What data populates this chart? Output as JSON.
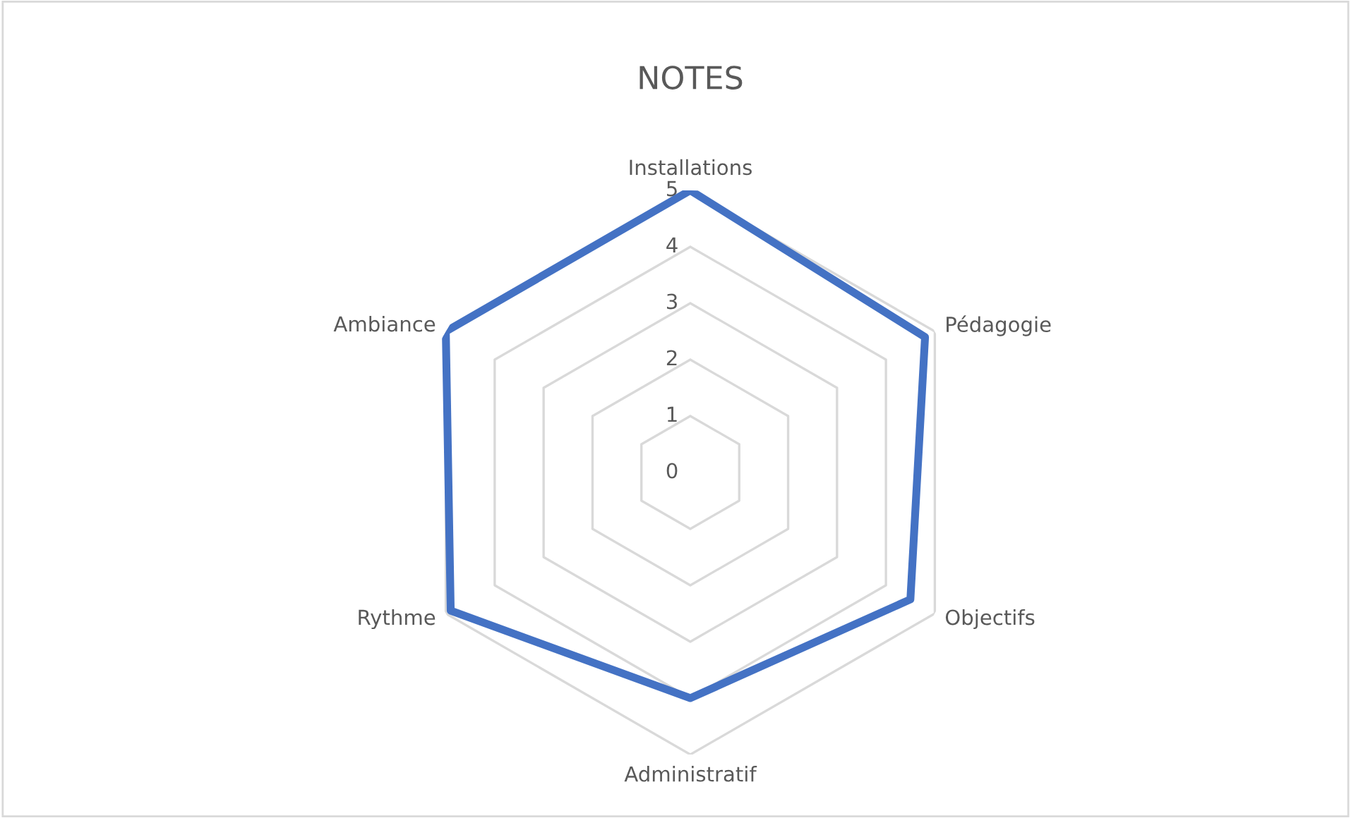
{
  "chart_data": {
    "type": "radar",
    "title": "NOTES",
    "categories": [
      "Installations",
      "Pédagogie",
      "Objectifs",
      "Administratif",
      "Rythme",
      "Ambiance"
    ],
    "series": [
      {
        "color": "#4472c4",
        "values": [
          5,
          4.8,
          4.5,
          4,
          4.9,
          5
        ]
      }
    ],
    "ylim": [
      0,
      5
    ],
    "yticks": [
      {
        "value": 0,
        "label": "0"
      },
      1,
      2,
      3,
      4,
      5
    ],
    "grid": true
  }
}
